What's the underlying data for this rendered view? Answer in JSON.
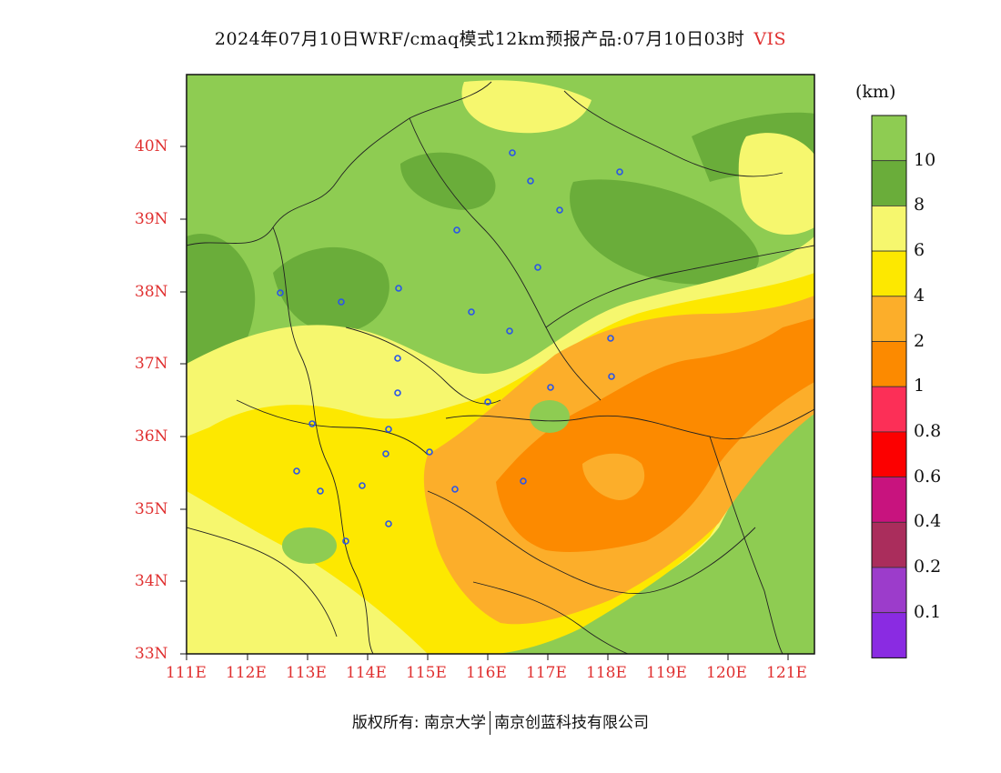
{
  "header": {
    "title": "2024年07月10日WRF/cmaq模式12km预报产品:07月10日03时",
    "variable": "VIS"
  },
  "map": {
    "lat_labels": [
      "40N",
      "39N",
      "38N",
      "37N",
      "36N",
      "35N",
      "34N",
      "33N"
    ],
    "lon_labels": [
      "111E",
      "112E",
      "113E",
      "114E",
      "115E",
      "116E",
      "117E",
      "118E",
      "119E",
      "120E",
      "121E"
    ]
  },
  "legend": {
    "unit": "(km)",
    "levels": [
      {
        "label": "10",
        "color": "#8ecc52"
      },
      {
        "label": "8",
        "color": "#6aad3a"
      },
      {
        "label": "6",
        "color": "#f6f76e"
      },
      {
        "label": "4",
        "color": "#fde800"
      },
      {
        "label": "2",
        "color": "#fcae2a"
      },
      {
        "label": "1",
        "color": "#fc8a00"
      },
      {
        "label": "0.8",
        "color": "#fc2f57"
      },
      {
        "label": "0.6",
        "color": "#fc0000"
      },
      {
        "label": "0.4",
        "color": "#c8137e"
      },
      {
        "label": "0.2",
        "color": "#aa2d5c"
      },
      {
        "label": "0.1",
        "color": "#9c3ccb"
      },
      {
        "label": "",
        "color": "#8a2be2"
      }
    ]
  },
  "footer": {
    "copyright": "版权所有: 南京大学",
    "company": "南京创蓝科技有限公司"
  }
}
